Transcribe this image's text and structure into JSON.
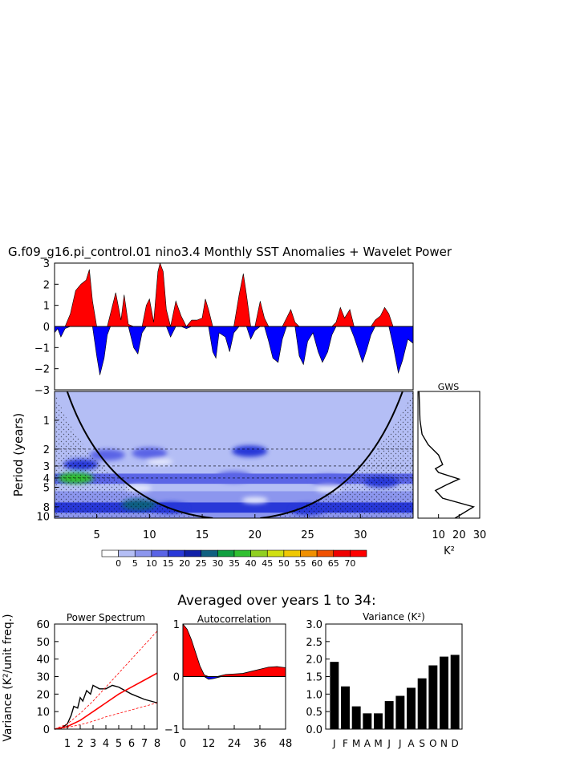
{
  "title": "G.f09_g16.pi_control.01 nino3.4 Monthly SST Anomalies + Wavelet Power",
  "colors": {
    "positive": "#ff0000",
    "negative": "#0000ff",
    "line": "#000000",
    "red_line": "#ff0000"
  },
  "chart_data": [
    {
      "id": "sst_anomaly",
      "type": "area",
      "xlim": [
        1,
        35
      ],
      "ylim": [
        -3,
        3
      ],
      "yticks": [
        "3",
        "2",
        "1",
        "0",
        "−1",
        "−2",
        "−3"
      ],
      "anomaly_envelope": [
        {
          "x": 1.0,
          "y": -0.3
        },
        {
          "x": 1.3,
          "y": -0.1
        },
        {
          "x": 1.6,
          "y": -0.5
        },
        {
          "x": 2.0,
          "y": -0.1
        },
        {
          "x": 2.5,
          "y": 0.6
        },
        {
          "x": 3.0,
          "y": 1.7
        },
        {
          "x": 3.5,
          "y": 2.0
        },
        {
          "x": 4.0,
          "y": 2.2
        },
        {
          "x": 4.3,
          "y": 2.7
        },
        {
          "x": 4.6,
          "y": 1.2
        },
        {
          "x": 5.0,
          "y": -1.4
        },
        {
          "x": 5.3,
          "y": -2.3
        },
        {
          "x": 5.7,
          "y": -1.5
        },
        {
          "x": 6.0,
          "y": -0.4
        },
        {
          "x": 6.3,
          "y": 0.6
        },
        {
          "x": 6.8,
          "y": 1.6
        },
        {
          "x": 7.3,
          "y": 0.3
        },
        {
          "x": 7.6,
          "y": 1.5
        },
        {
          "x": 8.0,
          "y": 0.1
        },
        {
          "x": 8.5,
          "y": -1.0
        },
        {
          "x": 8.9,
          "y": -1.3
        },
        {
          "x": 9.3,
          "y": -0.3
        },
        {
          "x": 9.7,
          "y": 1.0
        },
        {
          "x": 10.0,
          "y": 1.3
        },
        {
          "x": 10.4,
          "y": 0.2
        },
        {
          "x": 10.8,
          "y": 2.6
        },
        {
          "x": 11.0,
          "y": 3.0
        },
        {
          "x": 11.3,
          "y": 2.6
        },
        {
          "x": 11.6,
          "y": 0.8
        },
        {
          "x": 12.0,
          "y": -0.5
        },
        {
          "x": 12.5,
          "y": 1.2
        },
        {
          "x": 13.0,
          "y": 0.5
        },
        {
          "x": 13.5,
          "y": -0.1
        },
        {
          "x": 14.0,
          "y": 0.3
        },
        {
          "x": 14.5,
          "y": 0.3
        },
        {
          "x": 15.0,
          "y": 0.4
        },
        {
          "x": 15.3,
          "y": 1.3
        },
        {
          "x": 15.6,
          "y": 0.8
        },
        {
          "x": 16.0,
          "y": -1.2
        },
        {
          "x": 16.3,
          "y": -1.5
        },
        {
          "x": 16.6,
          "y": -0.3
        },
        {
          "x": 17.2,
          "y": -0.5
        },
        {
          "x": 17.6,
          "y": -1.2
        },
        {
          "x": 18.0,
          "y": -0.3
        },
        {
          "x": 18.5,
          "y": 1.5
        },
        {
          "x": 18.9,
          "y": 2.5
        },
        {
          "x": 19.2,
          "y": 1.5
        },
        {
          "x": 19.6,
          "y": -0.6
        },
        {
          "x": 20.0,
          "y": -0.2
        },
        {
          "x": 20.5,
          "y": 1.2
        },
        {
          "x": 20.9,
          "y": 0.4
        },
        {
          "x": 21.3,
          "y": -0.7
        },
        {
          "x": 21.7,
          "y": -1.5
        },
        {
          "x": 22.2,
          "y": -1.7
        },
        {
          "x": 22.6,
          "y": -0.6
        },
        {
          "x": 23.0,
          "y": 0.4
        },
        {
          "x": 23.4,
          "y": 0.8
        },
        {
          "x": 23.8,
          "y": 0.2
        },
        {
          "x": 24.2,
          "y": -1.4
        },
        {
          "x": 24.6,
          "y": -1.8
        },
        {
          "x": 25.0,
          "y": -0.7
        },
        {
          "x": 25.5,
          "y": -0.3
        },
        {
          "x": 26.0,
          "y": -1.2
        },
        {
          "x": 26.4,
          "y": -1.7
        },
        {
          "x": 26.9,
          "y": -1.2
        },
        {
          "x": 27.3,
          "y": -0.4
        },
        {
          "x": 27.7,
          "y": 0.2
        },
        {
          "x": 28.1,
          "y": 0.9
        },
        {
          "x": 28.5,
          "y": 0.4
        },
        {
          "x": 29.0,
          "y": 0.8
        },
        {
          "x": 29.4,
          "y": -0.5
        },
        {
          "x": 29.8,
          "y": -1.1
        },
        {
          "x": 30.2,
          "y": -1.7
        },
        {
          "x": 30.6,
          "y": -1.1
        },
        {
          "x": 31.0,
          "y": -0.4
        },
        {
          "x": 31.4,
          "y": 0.3
        },
        {
          "x": 31.9,
          "y": 0.5
        },
        {
          "x": 32.3,
          "y": 0.9
        },
        {
          "x": 32.7,
          "y": 0.6
        },
        {
          "x": 33.1,
          "y": -0.9
        },
        {
          "x": 33.6,
          "y": -2.2
        },
        {
          "x": 34.0,
          "y": -1.6
        },
        {
          "x": 34.5,
          "y": -0.6
        },
        {
          "x": 35.0,
          "y": -0.8
        }
      ]
    },
    {
      "id": "wavelet_power",
      "type": "heatmap",
      "ylabel": "Period (years)",
      "xticks": [
        "5",
        "10",
        "15",
        "20",
        "25",
        "30"
      ],
      "xtick_values": [
        5,
        10,
        15,
        20,
        25,
        30
      ],
      "xlim": [
        1,
        35
      ],
      "period_ticks": [
        "1",
        "2",
        "3",
        "4",
        "5",
        "8",
        "10"
      ],
      "period_tick_values": [
        1,
        2,
        3,
        4,
        5,
        8,
        10
      ],
      "period_range": [
        0.5,
        10.5
      ],
      "scale": "log",
      "dashed_periods": [
        2,
        3,
        4
      ],
      "contour_levels": [
        "0",
        "5",
        "10",
        "15",
        "20",
        "25",
        "30",
        "35",
        "40",
        "45",
        "50",
        "55",
        "60",
        "65",
        "70"
      ],
      "level_colors": [
        "#ffffff",
        "#b4bef5",
        "#8c96ee",
        "#5a64e6",
        "#2838d8",
        "#1020a8",
        "#106080",
        "#10a040",
        "#30c030",
        "#90d020",
        "#d0e010",
        "#f0c800",
        "#f09000",
        "#f05000",
        "#f00000"
      ],
      "blobs": [
        {
          "x": 3.5,
          "period": 2.9,
          "level": 4
        },
        {
          "x": 3.0,
          "period": 4.0,
          "level": 8
        },
        {
          "x": 6.0,
          "period": 2.3,
          "level": 3
        },
        {
          "x": 10.0,
          "period": 2.2,
          "level": 3
        },
        {
          "x": 19.5,
          "period": 2.1,
          "level": 4
        },
        {
          "x": 18.0,
          "period": 3.9,
          "level": 3
        },
        {
          "x": 27.0,
          "period": 4.2,
          "level": 3
        },
        {
          "x": 32.0,
          "period": 4.4,
          "level": 4
        },
        {
          "x": 12.0,
          "period": 8.2,
          "level": 4
        },
        {
          "x": 25.0,
          "period": 8.5,
          "level": 4
        },
        {
          "x": 9.0,
          "period": 7.6,
          "level": 6
        }
      ]
    },
    {
      "id": "gws",
      "type": "line",
      "title": "GWS",
      "xlabel": "K²",
      "xticks": [
        "10",
        "20",
        "30"
      ],
      "xtick_values": [
        10,
        20,
        30
      ],
      "xlim": [
        0,
        30
      ],
      "x": [
        0.5,
        1.0,
        2.0,
        5.0,
        10.0,
        12.0,
        8.5,
        10.0,
        20.0,
        14.0,
        8.5,
        12.0,
        27.0,
        18.0
      ],
      "y": [
        0.5,
        1.0,
        1.4,
        1.8,
        2.3,
        2.9,
        3.2,
        3.5,
        4.1,
        4.7,
        5.4,
        6.5,
        8.0,
        10.5
      ]
    },
    {
      "id": "colorbar",
      "type": "table",
      "labels": [
        "0",
        "5",
        "10",
        "15",
        "20",
        "25",
        "30",
        "35",
        "40",
        "45",
        "50",
        "55",
        "60",
        "65",
        "70"
      ]
    },
    {
      "id": "averaged_title",
      "type": "table",
      "title": "Averaged over years 1 to 34:"
    },
    {
      "id": "power_spectrum",
      "type": "line",
      "title": "Power Spectrum",
      "ylabel": "Variance (K²/unit freq.)",
      "xticks": [
        "1",
        "2",
        "3",
        "4",
        "5",
        "6",
        "7",
        "8"
      ],
      "xtick_values": [
        1,
        2,
        3,
        4,
        5,
        6,
        7,
        8
      ],
      "yticks": [
        "0",
        "10",
        "20",
        "30",
        "40",
        "50",
        "60"
      ],
      "ytick_values": [
        0,
        10,
        20,
        30,
        40,
        50,
        60
      ],
      "xlim": [
        0,
        8
      ],
      "ylim": [
        0,
        60
      ],
      "series": [
        {
          "x": [
            0,
            0.5,
            1.0,
            1.3,
            1.5,
            1.8,
            2.0,
            2.2,
            2.5,
            2.8,
            3.0,
            3.5,
            4.0,
            4.5,
            5.0,
            5.5,
            6.0,
            7.0,
            8.0
          ],
          "y": [
            0,
            0.5,
            3,
            8,
            13,
            12,
            18,
            16,
            22,
            20,
            25,
            23,
            23,
            25,
            24,
            22,
            20,
            17,
            15
          ]
        },
        {
          "x": [
            0,
            1,
            2,
            3,
            4,
            5,
            6,
            7,
            8
          ],
          "y": [
            0,
            1.5,
            5,
            10,
            15,
            20,
            24,
            28,
            32
          ]
        },
        {
          "x": [
            0,
            1,
            2,
            3,
            4,
            5,
            6,
            7,
            8
          ],
          "y": [
            0,
            3,
            9,
            16,
            24,
            32,
            40,
            48,
            56
          ]
        },
        {
          "x": [
            0,
            1,
            2,
            3,
            4,
            5,
            6,
            7,
            8
          ],
          "y": [
            0,
            1,
            2.5,
            4.5,
            7,
            9,
            11,
            13,
            15
          ]
        }
      ]
    },
    {
      "id": "autocorrelation",
      "type": "area",
      "title": "Autocorrelation",
      "xticks": [
        "0",
        "12",
        "24",
        "36",
        "48"
      ],
      "xtick_values": [
        0,
        12,
        24,
        36,
        48
      ],
      "yticks": [
        "1",
        "0",
        "−1"
      ],
      "ytick_values": [
        1,
        0,
        -1
      ],
      "xlim": [
        0,
        48
      ],
      "ylim": [
        -1,
        1
      ],
      "x": [
        0,
        2,
        4,
        6,
        8,
        10,
        12,
        14,
        16,
        18,
        20,
        24,
        28,
        32,
        36,
        40,
        44,
        46,
        48
      ],
      "y": [
        1.0,
        0.9,
        0.7,
        0.45,
        0.2,
        0.03,
        -0.05,
        -0.04,
        -0.02,
        0.02,
        0.04,
        0.05,
        0.06,
        0.1,
        0.14,
        0.18,
        0.19,
        0.18,
        0.17
      ]
    },
    {
      "id": "monthly_variance",
      "type": "bar",
      "title": "Variance (K²)",
      "categories": [
        "J",
        "F",
        "M",
        "A",
        "M",
        "J",
        "J",
        "A",
        "S",
        "O",
        "N",
        "D"
      ],
      "values": [
        1.92,
        1.22,
        0.65,
        0.45,
        0.45,
        0.8,
        0.95,
        1.18,
        1.45,
        1.82,
        2.07,
        2.12
      ],
      "yticks": [
        "0.0",
        "0.5",
        "1.0",
        "1.5",
        "2.0",
        "2.5",
        "3.0"
      ],
      "ytick_values": [
        0,
        0.5,
        1.0,
        1.5,
        2.0,
        2.5,
        3.0
      ],
      "ylim": [
        0,
        3.0
      ]
    }
  ]
}
